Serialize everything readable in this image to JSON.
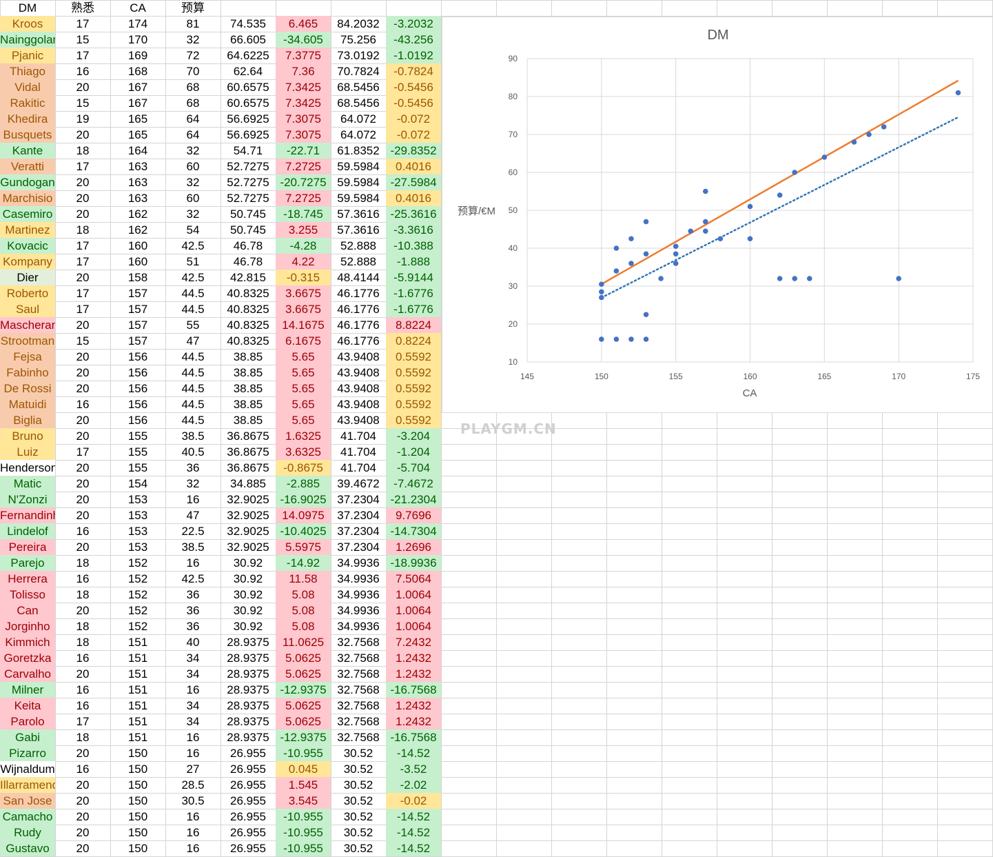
{
  "sheet": {
    "headers": [
      "DM",
      "熟悉",
      "CA",
      "预算",
      "",
      "",
      "",
      ""
    ],
    "fills": {
      "orange": "#F8CBAD",
      "yellow": "#FFE699",
      "green": "#C6EFCE",
      "red": "#FFC7CE",
      "gray": "#E2EFDA",
      "none": "#FFFFFF"
    },
    "text_colors": {
      "orange": "#9C5700",
      "yellow": "#9C5700",
      "green": "#006100",
      "red": "#9C0006",
      "gray": "#000000",
      "none": "#000000"
    },
    "rows": [
      [
        "Kroos",
        "17",
        "174",
        "81",
        "74.535",
        "6.465",
        "84.2032",
        "-3.2032",
        "yellow",
        "red",
        "green"
      ],
      [
        "Nainggolan",
        "15",
        "170",
        "32",
        "66.605",
        "-34.605",
        "75.256",
        "-43.256",
        "green",
        "green",
        "green"
      ],
      [
        "Pjanic",
        "17",
        "169",
        "72",
        "64.6225",
        "7.3775",
        "73.0192",
        "-1.0192",
        "yellow",
        "red",
        "green"
      ],
      [
        "Thiago",
        "16",
        "168",
        "70",
        "62.64",
        "7.36",
        "70.7824",
        "-0.7824",
        "orange",
        "red",
        "yellow"
      ],
      [
        "Vidal",
        "20",
        "167",
        "68",
        "60.6575",
        "7.3425",
        "68.5456",
        "-0.5456",
        "orange",
        "red",
        "yellow"
      ],
      [
        "Rakitic",
        "15",
        "167",
        "68",
        "60.6575",
        "7.3425",
        "68.5456",
        "-0.5456",
        "orange",
        "red",
        "yellow"
      ],
      [
        "Khedira",
        "19",
        "165",
        "64",
        "56.6925",
        "7.3075",
        "64.072",
        "-0.072",
        "orange",
        "red",
        "yellow"
      ],
      [
        "Busquets",
        "20",
        "165",
        "64",
        "56.6925",
        "7.3075",
        "64.072",
        "-0.072",
        "orange",
        "red",
        "yellow"
      ],
      [
        "Kante",
        "18",
        "164",
        "32",
        "54.71",
        "-22.71",
        "61.8352",
        "-29.8352",
        "green",
        "green",
        "green"
      ],
      [
        "Veratti",
        "17",
        "163",
        "60",
        "52.7275",
        "7.2725",
        "59.5984",
        "0.4016",
        "orange",
        "red",
        "yellow"
      ],
      [
        "Gundogan",
        "20",
        "163",
        "32",
        "52.7275",
        "-20.7275",
        "59.5984",
        "-27.5984",
        "green",
        "green",
        "green"
      ],
      [
        "Marchisio",
        "20",
        "163",
        "60",
        "52.7275",
        "7.2725",
        "59.5984",
        "0.4016",
        "orange",
        "red",
        "yellow"
      ],
      [
        "Casemiro",
        "20",
        "162",
        "32",
        "50.745",
        "-18.745",
        "57.3616",
        "-25.3616",
        "green",
        "green",
        "green"
      ],
      [
        "Martinez",
        "18",
        "162",
        "54",
        "50.745",
        "3.255",
        "57.3616",
        "-3.3616",
        "yellow",
        "red",
        "green"
      ],
      [
        "Kovacic",
        "17",
        "160",
        "42.5",
        "46.78",
        "-4.28",
        "52.888",
        "-10.388",
        "green",
        "green",
        "green"
      ],
      [
        "Kompany",
        "17",
        "160",
        "51",
        "46.78",
        "4.22",
        "52.888",
        "-1.888",
        "yellow",
        "red",
        "green"
      ],
      [
        "Dier",
        "20",
        "158",
        "42.5",
        "42.815",
        "-0.315",
        "48.4144",
        "-5.9144",
        "gray",
        "yellow",
        "green"
      ],
      [
        "Roberto",
        "17",
        "157",
        "44.5",
        "40.8325",
        "3.6675",
        "46.1776",
        "-1.6776",
        "yellow",
        "red",
        "green"
      ],
      [
        "Saul",
        "17",
        "157",
        "44.5",
        "40.8325",
        "3.6675",
        "46.1776",
        "-1.6776",
        "yellow",
        "red",
        "green"
      ],
      [
        "Mascherano",
        "20",
        "157",
        "55",
        "40.8325",
        "14.1675",
        "46.1776",
        "8.8224",
        "red",
        "red",
        "red"
      ],
      [
        "Strootman",
        "15",
        "157",
        "47",
        "40.8325",
        "6.1675",
        "46.1776",
        "0.8224",
        "orange",
        "red",
        "yellow"
      ],
      [
        "Fejsa",
        "20",
        "156",
        "44.5",
        "38.85",
        "5.65",
        "43.9408",
        "0.5592",
        "orange",
        "red",
        "yellow"
      ],
      [
        "Fabinho",
        "20",
        "156",
        "44.5",
        "38.85",
        "5.65",
        "43.9408",
        "0.5592",
        "orange",
        "red",
        "yellow"
      ],
      [
        "De Rossi",
        "20",
        "156",
        "44.5",
        "38.85",
        "5.65",
        "43.9408",
        "0.5592",
        "orange",
        "red",
        "yellow"
      ],
      [
        "Matuidi",
        "16",
        "156",
        "44.5",
        "38.85",
        "5.65",
        "43.9408",
        "0.5592",
        "orange",
        "red",
        "yellow"
      ],
      [
        "Biglia",
        "20",
        "156",
        "44.5",
        "38.85",
        "5.65",
        "43.9408",
        "0.5592",
        "orange",
        "red",
        "yellow"
      ],
      [
        "Bruno",
        "20",
        "155",
        "38.5",
        "36.8675",
        "1.6325",
        "41.704",
        "-3.204",
        "yellow",
        "red",
        "green"
      ],
      [
        "Luiz",
        "17",
        "155",
        "40.5",
        "36.8675",
        "3.6325",
        "41.704",
        "-1.204",
        "yellow",
        "red",
        "green"
      ],
      [
        "Henderson",
        "20",
        "155",
        "36",
        "36.8675",
        "-0.8675",
        "41.704",
        "-5.704",
        "none",
        "yellow",
        "green"
      ],
      [
        "Matic",
        "20",
        "154",
        "32",
        "34.885",
        "-2.885",
        "39.4672",
        "-7.4672",
        "green",
        "green",
        "green"
      ],
      [
        "N'Zonzi",
        "20",
        "153",
        "16",
        "32.9025",
        "-16.9025",
        "37.2304",
        "-21.2304",
        "green",
        "green",
        "green"
      ],
      [
        "Fernandinho",
        "20",
        "153",
        "47",
        "32.9025",
        "14.0975",
        "37.2304",
        "9.7696",
        "red",
        "red",
        "red"
      ],
      [
        "Lindelof",
        "16",
        "153",
        "22.5",
        "32.9025",
        "-10.4025",
        "37.2304",
        "-14.7304",
        "green",
        "green",
        "green"
      ],
      [
        "Pereira",
        "20",
        "153",
        "38.5",
        "32.9025",
        "5.5975",
        "37.2304",
        "1.2696",
        "red",
        "red",
        "red"
      ],
      [
        "Parejo",
        "18",
        "152",
        "16",
        "30.92",
        "-14.92",
        "34.9936",
        "-18.9936",
        "green",
        "green",
        "green"
      ],
      [
        "Herrera",
        "16",
        "152",
        "42.5",
        "30.92",
        "11.58",
        "34.9936",
        "7.5064",
        "red",
        "red",
        "red"
      ],
      [
        "Tolisso",
        "18",
        "152",
        "36",
        "30.92",
        "5.08",
        "34.9936",
        "1.0064",
        "red",
        "red",
        "red"
      ],
      [
        "Can",
        "20",
        "152",
        "36",
        "30.92",
        "5.08",
        "34.9936",
        "1.0064",
        "red",
        "red",
        "red"
      ],
      [
        "Jorginho",
        "18",
        "152",
        "36",
        "30.92",
        "5.08",
        "34.9936",
        "1.0064",
        "red",
        "red",
        "red"
      ],
      [
        "Kimmich",
        "18",
        "151",
        "40",
        "28.9375",
        "11.0625",
        "32.7568",
        "7.2432",
        "red",
        "red",
        "red"
      ],
      [
        "Goretzka",
        "16",
        "151",
        "34",
        "28.9375",
        "5.0625",
        "32.7568",
        "1.2432",
        "red",
        "red",
        "red"
      ],
      [
        "Carvalho",
        "20",
        "151",
        "34",
        "28.9375",
        "5.0625",
        "32.7568",
        "1.2432",
        "red",
        "red",
        "red"
      ],
      [
        "Milner",
        "16",
        "151",
        "16",
        "28.9375",
        "-12.9375",
        "32.7568",
        "-16.7568",
        "green",
        "green",
        "green"
      ],
      [
        "Keita",
        "16",
        "151",
        "34",
        "28.9375",
        "5.0625",
        "32.7568",
        "1.2432",
        "red",
        "red",
        "red"
      ],
      [
        "Parolo",
        "17",
        "151",
        "34",
        "28.9375",
        "5.0625",
        "32.7568",
        "1.2432",
        "red",
        "red",
        "red"
      ],
      [
        "Gabi",
        "18",
        "151",
        "16",
        "28.9375",
        "-12.9375",
        "32.7568",
        "-16.7568",
        "green",
        "green",
        "green"
      ],
      [
        "Pizarro",
        "20",
        "150",
        "16",
        "26.955",
        "-10.955",
        "30.52",
        "-14.52",
        "green",
        "green",
        "green"
      ],
      [
        "Wijnaldum",
        "16",
        "150",
        "27",
        "26.955",
        "0.045",
        "30.52",
        "-3.52",
        "none",
        "yellow",
        "green"
      ],
      [
        "Illarramendi",
        "20",
        "150",
        "28.5",
        "26.955",
        "1.545",
        "30.52",
        "-2.02",
        "yellow",
        "red",
        "green"
      ],
      [
        "San Jose",
        "20",
        "150",
        "30.5",
        "26.955",
        "3.545",
        "30.52",
        "-0.02",
        "orange",
        "red",
        "yellow"
      ],
      [
        "Camacho",
        "20",
        "150",
        "16",
        "26.955",
        "-10.955",
        "30.52",
        "-14.52",
        "green",
        "green",
        "green"
      ],
      [
        "Rudy",
        "20",
        "150",
        "16",
        "26.955",
        "-10.955",
        "30.52",
        "-14.52",
        "green",
        "green",
        "green"
      ],
      [
        "Gustavo",
        "20",
        "150",
        "16",
        "26.955",
        "-10.955",
        "30.52",
        "-14.52",
        "green",
        "green",
        "green"
      ]
    ]
  },
  "chart_data": {
    "type": "scatter",
    "title": "DM",
    "xlabel": "CA",
    "ylabel": "预算/€M",
    "xlim": [
      145,
      175
    ],
    "ylim": [
      10,
      90
    ],
    "xticks": [
      145,
      150,
      155,
      160,
      165,
      170,
      175
    ],
    "yticks": [
      10,
      20,
      30,
      40,
      50,
      60,
      70,
      80,
      90
    ],
    "grid": true,
    "colors": {
      "points": "#4472C4",
      "fit_line": "#ED7D31",
      "trend_dotted": "#2E75B6"
    },
    "points": [
      [
        174,
        81
      ],
      [
        170,
        32
      ],
      [
        169,
        72
      ],
      [
        168,
        70
      ],
      [
        167,
        68
      ],
      [
        165,
        64
      ],
      [
        164,
        32
      ],
      [
        163,
        60
      ],
      [
        163,
        32
      ],
      [
        162,
        32
      ],
      [
        162,
        54
      ],
      [
        160,
        42.5
      ],
      [
        160,
        51
      ],
      [
        158,
        42.5
      ],
      [
        157,
        44.5
      ],
      [
        157,
        55
      ],
      [
        157,
        47
      ],
      [
        156,
        44.5
      ],
      [
        155,
        38.5
      ],
      [
        155,
        40.5
      ],
      [
        155,
        36
      ],
      [
        154,
        32
      ],
      [
        153,
        16
      ],
      [
        153,
        47
      ],
      [
        153,
        22.5
      ],
      [
        153,
        38.5
      ],
      [
        152,
        16
      ],
      [
        152,
        42.5
      ],
      [
        152,
        36
      ],
      [
        151,
        40
      ],
      [
        151,
        34
      ],
      [
        151,
        16
      ],
      [
        150,
        16
      ],
      [
        150,
        27
      ],
      [
        150,
        28.5
      ],
      [
        150,
        30.5
      ]
    ],
    "fit_line": [
      [
        150,
        30.52
      ],
      [
        151,
        32.7568
      ],
      [
        152,
        34.9936
      ],
      [
        153,
        37.2304
      ],
      [
        154,
        39.4672
      ],
      [
        155,
        41.704
      ],
      [
        156,
        43.9408
      ],
      [
        157,
        46.1776
      ],
      [
        158,
        48.4144
      ],
      [
        160,
        52.888
      ],
      [
        162,
        57.3616
      ],
      [
        163,
        59.5984
      ],
      [
        164,
        61.8352
      ],
      [
        165,
        64.072
      ],
      [
        167,
        68.5456
      ],
      [
        168,
        70.7824
      ],
      [
        169,
        73.0192
      ],
      [
        170,
        75.256
      ],
      [
        174,
        84.2032
      ]
    ],
    "trend_dotted": [
      [
        150,
        26.955
      ],
      [
        174,
        74.535
      ]
    ]
  },
  "watermark": "PLAYGM.CN"
}
